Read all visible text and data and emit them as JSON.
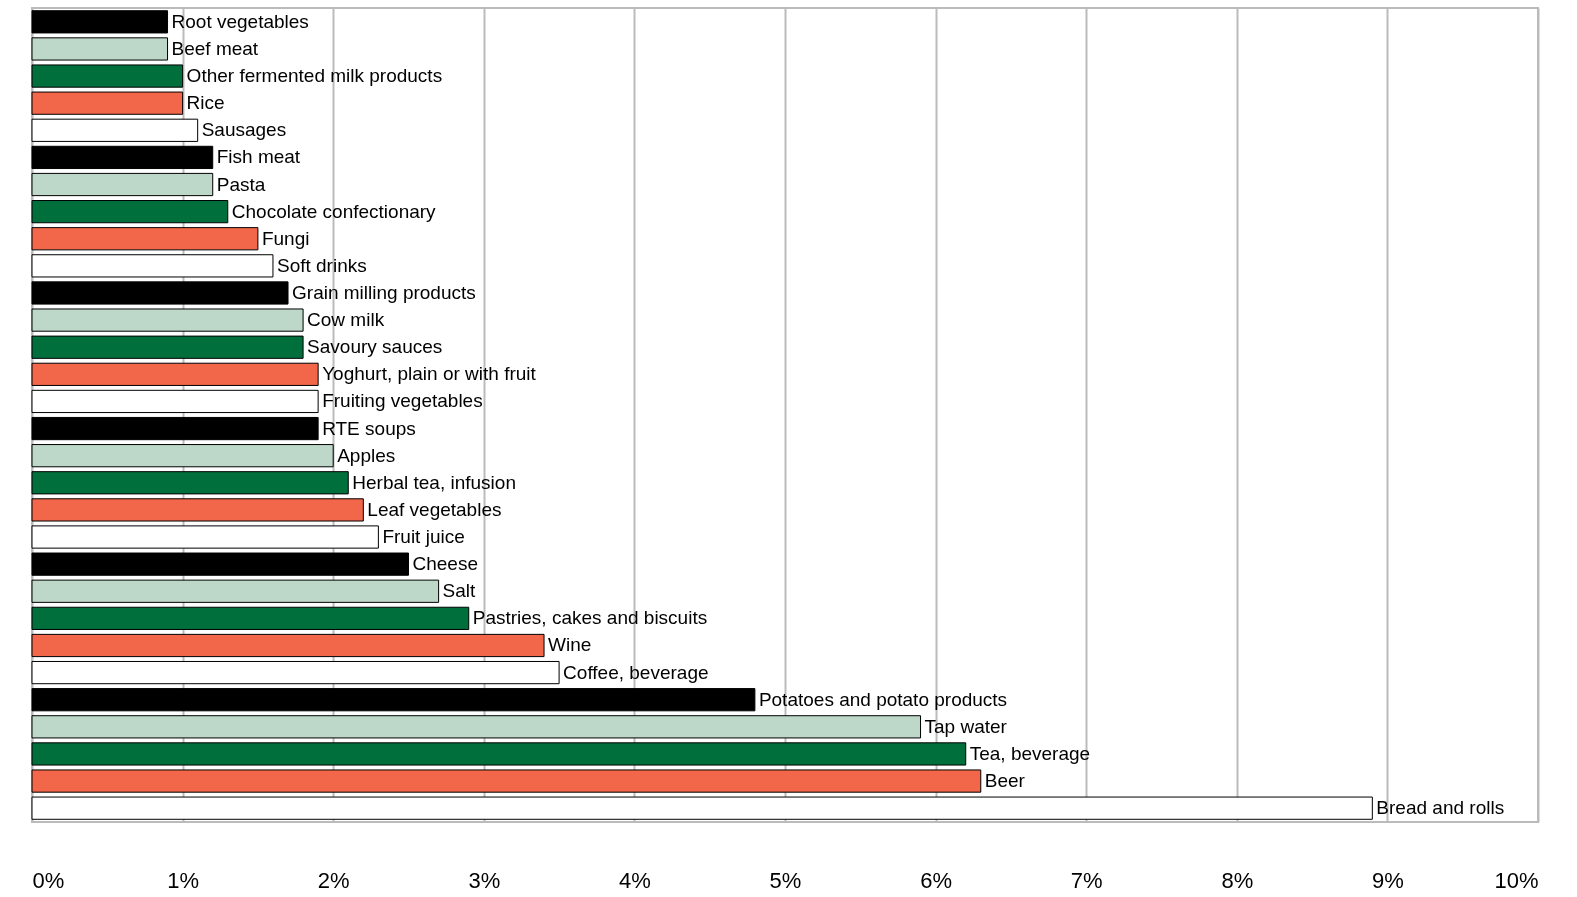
{
  "chart_data": {
    "type": "bar",
    "orientation": "horizontal",
    "categories": [
      "Root vegetables",
      "Beef meat",
      "Other fermented milk products",
      "Rice",
      "Sausages",
      "Fish meat",
      "Pasta",
      "Chocolate confectionary",
      "Fungi",
      "Soft drinks",
      "Grain milling products",
      "Cow milk",
      "Savoury sauces",
      "Yoghurt, plain or with fruit",
      "Fruiting vegetables",
      "RTE soups",
      "Apples",
      "Herbal tea, infusion",
      "Leaf vegetables",
      "Fruit juice",
      "Cheese",
      "Salt",
      "Pastries, cakes and biscuits",
      "Wine",
      "Coffee, beverage",
      "Potatoes and potato products",
      "Tap water",
      "Tea, beverage",
      "Beer",
      "Bread and rolls"
    ],
    "values": [
      0.9,
      0.9,
      1.0,
      1.0,
      1.1,
      1.2,
      1.2,
      1.3,
      1.5,
      1.6,
      1.7,
      1.8,
      1.8,
      1.9,
      1.9,
      1.9,
      2.0,
      2.1,
      2.2,
      2.3,
      2.5,
      2.7,
      2.9,
      3.4,
      3.5,
      4.8,
      5.9,
      6.2,
      6.3,
      8.9
    ],
    "colors": [
      "#000000",
      "#bdd7c8",
      "#006f3c",
      "#f26649",
      "#ffffff",
      "#000000",
      "#bdd7c8",
      "#006f3c",
      "#f26649",
      "#ffffff",
      "#000000",
      "#bdd7c8",
      "#006f3c",
      "#f26649",
      "#ffffff",
      "#000000",
      "#bdd7c8",
      "#006f3c",
      "#f26649",
      "#ffffff",
      "#000000",
      "#bdd7c8",
      "#006f3c",
      "#f26649",
      "#ffffff",
      "#000000",
      "#bdd7c8",
      "#006f3c",
      "#f26649",
      "#ffffff"
    ],
    "xlim": [
      0,
      10
    ],
    "xticks": [
      {
        "value": 0,
        "label": "0%"
      },
      {
        "value": 1,
        "label": "1%"
      },
      {
        "value": 2,
        "label": "2%"
      },
      {
        "value": 3,
        "label": "3%"
      },
      {
        "value": 4,
        "label": "4%"
      },
      {
        "value": 5,
        "label": "5%"
      },
      {
        "value": 6,
        "label": "6%"
      },
      {
        "value": 7,
        "label": "7%"
      },
      {
        "value": 8,
        "label": "8%"
      },
      {
        "value": 9,
        "label": "9%"
      },
      {
        "value": 10,
        "label": "10%"
      }
    ],
    "grid": "x",
    "tick_labels": "x",
    "legend": false
  }
}
